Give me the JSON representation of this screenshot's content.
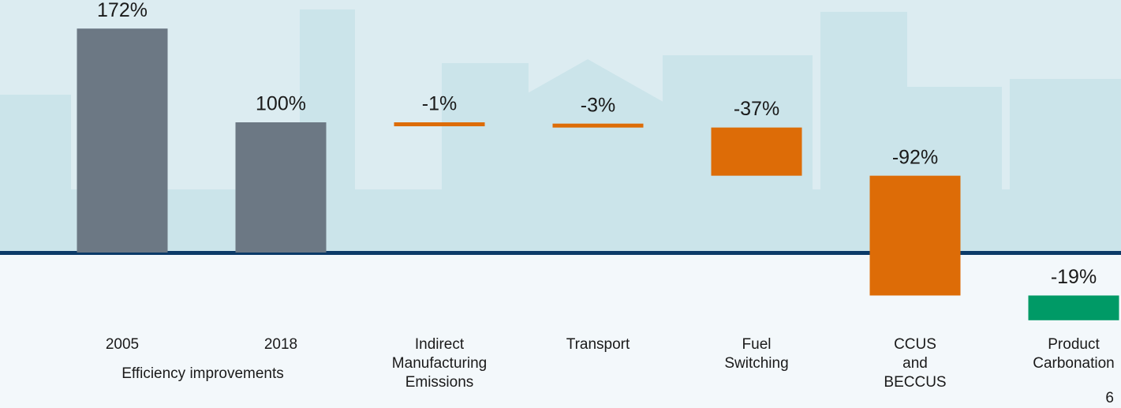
{
  "chart_data": {
    "type": "waterfall",
    "categories": [
      [
        "2005"
      ],
      [
        "2018"
      ],
      [
        "Indirect",
        "Manufacturing",
        "Emissions"
      ],
      [
        "Transport"
      ],
      [
        "Fuel",
        "Switching"
      ],
      [
        "CCUS",
        "and",
        "BECCUS"
      ],
      [
        "Product",
        "Carbonation"
      ]
    ],
    "values": [
      172,
      100,
      -1,
      -3,
      -37,
      -92,
      -19
    ],
    "value_labels": [
      "172%",
      "100%",
      "-1%",
      "-3%",
      "-37%",
      "-92%",
      "-19%"
    ],
    "measure": [
      "absolute",
      "absolute",
      "relative",
      "relative",
      "relative",
      "relative",
      "relative"
    ],
    "colors": [
      "#6c7884",
      "#6c7884",
      "#dd6c07",
      "#dd6c07",
      "#dd6c07",
      "#dd6c07",
      "#009a66"
    ],
    "group_label": "Efficiency improvements",
    "page_number": "6"
  }
}
